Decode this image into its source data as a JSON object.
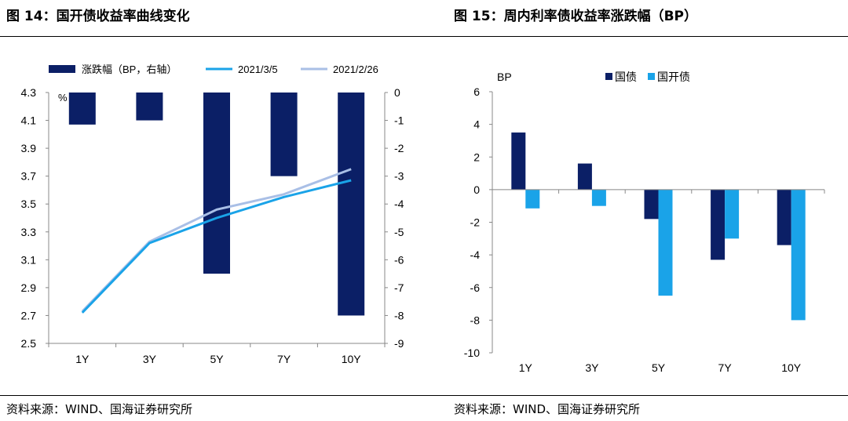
{
  "left": {
    "title": "图 14：国开债收益率曲线变化",
    "source": "资料来源：WIND、国海证券研究所"
  },
  "right": {
    "title": "图 15：周内利率债收益率涨跌幅（BP）",
    "source": "资料来源：WIND、国海证券研究所"
  },
  "colors": {
    "navy": "#0b1f66",
    "cyan": "#1aa3e8",
    "lightblue": "#a9bfe6",
    "axis": "#888888"
  },
  "chart_data": [
    {
      "type": "bar+line",
      "categories": [
        "1Y",
        "3Y",
        "5Y",
        "7Y",
        "10Y"
      ],
      "left_axis": {
        "unit_label": "%",
        "range": [
          2.5,
          4.3
        ],
        "ticks": [
          "4.3",
          "4.1",
          "3.9",
          "3.7",
          "3.5",
          "3.3",
          "3.1",
          "2.9",
          "2.7",
          "2.5"
        ],
        "tick_values": [
          4.3,
          4.1,
          3.9,
          3.7,
          3.5,
          3.3,
          3.1,
          2.9,
          2.7,
          2.5
        ]
      },
      "right_axis": {
        "range": [
          -9,
          0
        ],
        "ticks": [
          "0",
          "-1",
          "-2",
          "-3",
          "-4",
          "-5",
          "-6",
          "-7",
          "-8",
          "-9"
        ],
        "tick_values": [
          0,
          -1,
          -2,
          -3,
          -4,
          -5,
          -6,
          -7,
          -8,
          -9
        ]
      },
      "series": [
        {
          "name": "涨跌幅（BP，右轴）",
          "kind": "bar",
          "axis": "right",
          "color": "#0b1f66",
          "values": [
            -1.15,
            -1.0,
            -6.5,
            -3.0,
            -8.0
          ]
        },
        {
          "name": "2021/3/5",
          "kind": "line",
          "axis": "left",
          "color": "#1aa3e8",
          "values": [
            2.72,
            3.22,
            3.4,
            3.55,
            3.67
          ]
        },
        {
          "name": "2021/2/26",
          "kind": "line",
          "axis": "left",
          "color": "#a9bfe6",
          "values": [
            2.73,
            3.23,
            3.46,
            3.57,
            3.75
          ]
        }
      ]
    },
    {
      "type": "bar",
      "categories": [
        "1Y",
        "3Y",
        "5Y",
        "7Y",
        "10Y"
      ],
      "ylabel": "BP",
      "ylim": [
        -10,
        6
      ],
      "ticks": [
        "6",
        "4",
        "2",
        "0",
        "-2",
        "-4",
        "-6",
        "-8",
        "-10"
      ],
      "tick_values": [
        6,
        4,
        2,
        0,
        -2,
        -4,
        -6,
        -8,
        -10
      ],
      "series": [
        {
          "name": "国债",
          "color": "#0b1f66",
          "values": [
            3.5,
            1.6,
            -1.8,
            -4.3,
            -3.4
          ]
        },
        {
          "name": "国开债",
          "color": "#1aa3e8",
          "values": [
            -1.15,
            -1.0,
            -6.5,
            -3.0,
            -8.0
          ]
        }
      ]
    }
  ]
}
